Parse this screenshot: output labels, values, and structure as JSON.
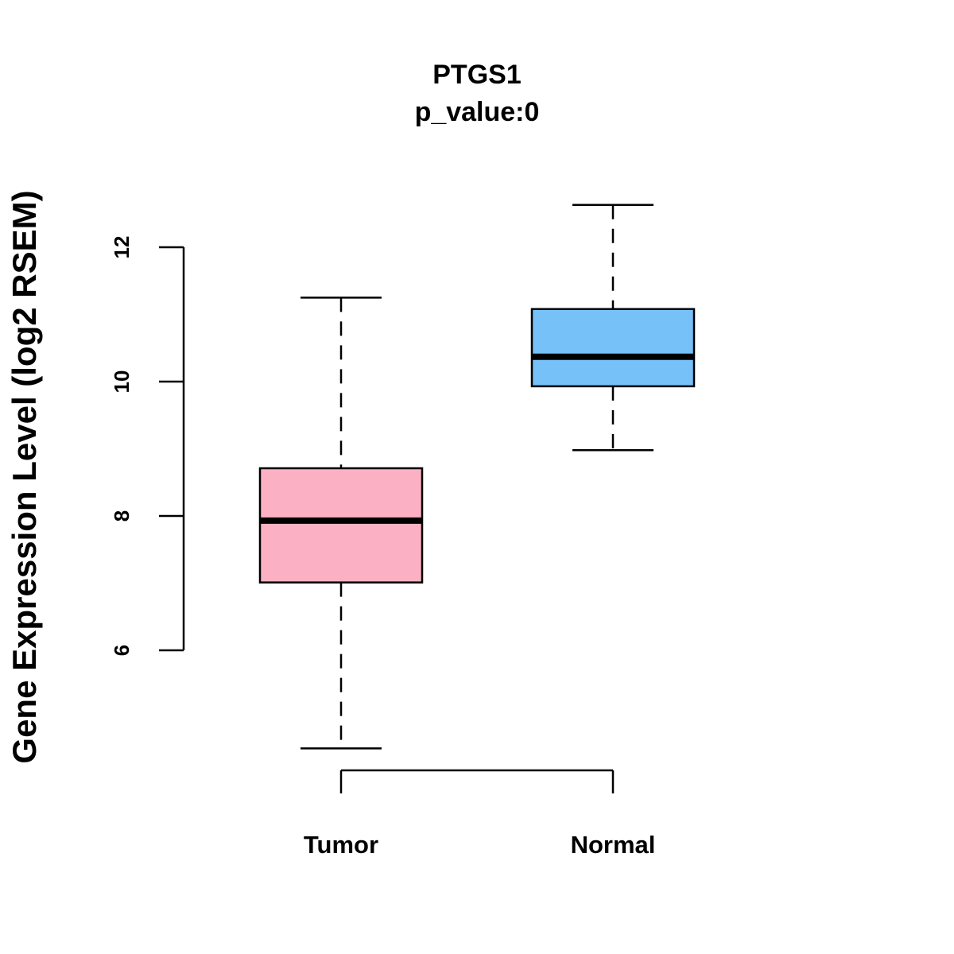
{
  "chart_data": {
    "type": "box",
    "title": "PTGS1",
    "subtitle": "p_value:0",
    "xlabel": "",
    "ylabel": "Gene Expression Level (log2 RSEM)",
    "ylim": [
      4.2,
      13.0
    ],
    "yticks": [
      6,
      8,
      10,
      12
    ],
    "grid": false,
    "categories": [
      "Tumor",
      "Normal"
    ],
    "boxes": [
      {
        "name": "Tumor",
        "whisker_low": 4.54,
        "q1": 7.01,
        "median": 7.93,
        "q3": 8.71,
        "whisker_high": 11.25,
        "color": "#FBB1C3"
      },
      {
        "name": "Normal",
        "whisker_low": 8.98,
        "q1": 9.93,
        "median": 10.37,
        "q3": 11.08,
        "whisker_high": 12.63,
        "color": "#76C1F8"
      }
    ]
  }
}
